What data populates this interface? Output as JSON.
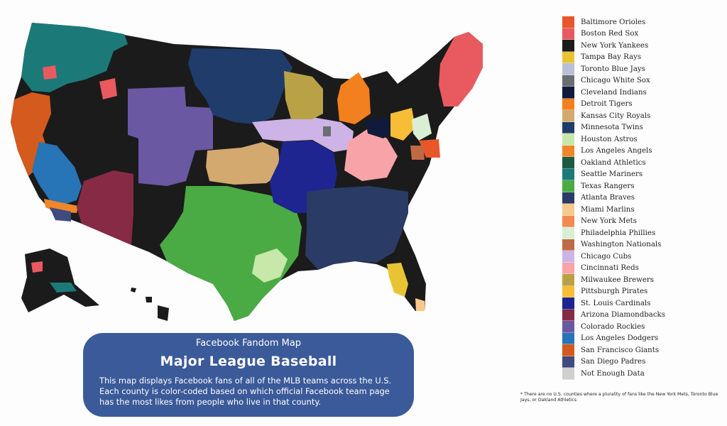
{
  "legend": [
    {
      "team": "Baltimore Orioles",
      "color": "#e8572a"
    },
    {
      "team": "Boston Red Sox",
      "color": "#e85a5f"
    },
    {
      "team": "New York Yankees",
      "color": "#1b1b1b"
    },
    {
      "team": "Tampa Bay Rays",
      "color": "#e8c434"
    },
    {
      "team": "Toronto Blue Jays",
      "color": "#b8bfd8"
    },
    {
      "team": "Chicago White Sox",
      "color": "#6b6e70"
    },
    {
      "team": "Cleveland Indians",
      "color": "#0f1a3d"
    },
    {
      "team": "Detroit Tigers",
      "color": "#f2801e"
    },
    {
      "team": "Kansas City Royals",
      "color": "#d3a96f"
    },
    {
      "team": "Minnesota Twins",
      "color": "#1f3c6b"
    },
    {
      "team": "Houston Astros",
      "color": "#c7e8a8"
    },
    {
      "team": "Los Angeles Angels",
      "color": "#f0862a"
    },
    {
      "team": "Oakland Athletics",
      "color": "#1d5a43"
    },
    {
      "team": "Seattle Mariners",
      "color": "#1b7a78"
    },
    {
      "team": "Texas Rangers",
      "color": "#4aab44"
    },
    {
      "team": "Atlanta Braves",
      "color": "#2a3b66"
    },
    {
      "team": "Miami Marlins",
      "color": "#f7c98a"
    },
    {
      "team": "New York Mets",
      "color": "#f08a50"
    },
    {
      "team": "Philadelphia Phillies",
      "color": "#d9eed2"
    },
    {
      "team": "Washington Nationals",
      "color": "#c06a45"
    },
    {
      "team": "Chicago Cubs",
      "color": "#cdb3e6"
    },
    {
      "team": "Cincinnati Reds",
      "color": "#f7a3a8"
    },
    {
      "team": "Milwaukee Brewers",
      "color": "#b9a246"
    },
    {
      "team": "Pittsburgh Pirates",
      "color": "#f7bd36"
    },
    {
      "team": "St. Louis Cardinals",
      "color": "#1f2590"
    },
    {
      "team": "Arizona Diamondbacks",
      "color": "#862a45"
    },
    {
      "team": "Colorado Rockies",
      "color": "#6a58a3"
    },
    {
      "team": "Los Angeles Dodgers",
      "color": "#2774b6"
    },
    {
      "team": "San Francisco Giants",
      "color": "#d45a1d"
    },
    {
      "team": "San Diego Padres",
      "color": "#3f4a7e"
    },
    {
      "team": "Not Enough Data",
      "color": "#d0d0d0"
    }
  ],
  "footnote": "* There are no U.S. counties where a plurality of fans like the New York Mets, Toronto Blue Jays, or Oakland Athletics",
  "info": {
    "subtitle": "Facebook Fandom Map",
    "title": "Major League Baseball",
    "description": "This map displays Facebook fans of all of the MLB teams across the U.S. Each county is color-coded based on which official Facebook team page has the most likes from people who live in that county."
  },
  "map": {
    "regions": [
      {
        "name": "seattle-mariners-region",
        "team": "Seattle Mariners"
      },
      {
        "name": "san-francisco-giants-region",
        "team": "San Francisco Giants"
      },
      {
        "name": "los-angeles-dodgers-region",
        "team": "Los Angeles Dodgers"
      },
      {
        "name": "los-angeles-angels-region",
        "team": "Los Angeles Angels"
      },
      {
        "name": "san-diego-padres-region",
        "team": "San Diego Padres"
      },
      {
        "name": "arizona-diamondbacks-region",
        "team": "Arizona Diamondbacks"
      },
      {
        "name": "colorado-rockies-region",
        "team": "Colorado Rockies"
      },
      {
        "name": "minnesota-twins-region",
        "team": "Minnesota Twins"
      },
      {
        "name": "kansas-city-royals-region",
        "team": "Kansas City Royals"
      },
      {
        "name": "texas-rangers-region",
        "team": "Texas Rangers"
      },
      {
        "name": "houston-astros-region",
        "team": "Houston Astros"
      },
      {
        "name": "st-louis-cardinals-region",
        "team": "St. Louis Cardinals"
      },
      {
        "name": "chicago-cubs-region",
        "team": "Chicago Cubs"
      },
      {
        "name": "milwaukee-brewers-region",
        "team": "Milwaukee Brewers"
      },
      {
        "name": "detroit-tigers-region",
        "team": "Detroit Tigers"
      },
      {
        "name": "cincinnati-reds-region",
        "team": "Cincinnati Reds"
      },
      {
        "name": "cleveland-indians-region",
        "team": "Cleveland Indians"
      },
      {
        "name": "pittsburgh-pirates-region",
        "team": "Pittsburgh Pirates"
      },
      {
        "name": "philadelphia-phillies-region",
        "team": "Philadelphia Phillies"
      },
      {
        "name": "baltimore-orioles-region",
        "team": "Baltimore Orioles"
      },
      {
        "name": "washington-nationals-region",
        "team": "Washington Nationals"
      },
      {
        "name": "boston-red-sox-region",
        "team": "Boston Red Sox"
      },
      {
        "name": "atlanta-braves-region",
        "team": "Atlanta Braves"
      },
      {
        "name": "tampa-bay-rays-region",
        "team": "Tampa Bay Rays"
      },
      {
        "name": "miami-marlins-region",
        "team": "Miami Marlins"
      },
      {
        "name": "chicago-white-sox-region",
        "team": "Chicago White Sox"
      },
      {
        "name": "new-york-yankees-region",
        "team": "New York Yankees"
      }
    ]
  }
}
